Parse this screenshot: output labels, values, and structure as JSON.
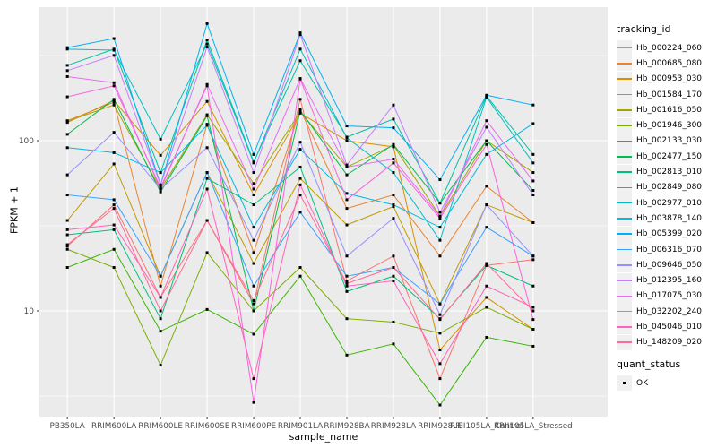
{
  "figure": {
    "background": "#FFFFFF",
    "panel_background": "#EBEBEB",
    "grid_color": "#FFFFFF",
    "tick_color": "#333333",
    "tick_label_color": "#4D4D4D",
    "axis_title_color": "#000000",
    "point_color": "#000000"
  },
  "chart_data": {
    "type": "line",
    "title": "",
    "xlabel": "sample_name",
    "ylabel": "FPKM + 1",
    "y_scale": "log10",
    "y_ticks": [
      100,
      10
    ],
    "y_minor_ticks": [
      316,
      31.6,
      3.16
    ],
    "ylim": [
      2.5,
      600
    ],
    "grid": true,
    "legend_position": "right",
    "point_marker": "black-square",
    "categories": [
      "PB350LA",
      "RRIM600LA",
      "RRIM600LE",
      "RRIM600SE",
      "RRIM600PE",
      "RRIM901LA",
      "RRIM928BA",
      "RRIM928LA",
      "RRIM928LE",
      "RRII105LA_Control",
      "RRII105LA_Stressed"
    ],
    "series": [
      {
        "name": "Hb_000224_060",
        "color": "#F8766D",
        "values": [
          24,
          42,
          12,
          34,
          11,
          175,
          15,
          21,
          4.0,
          18.5,
          20
        ]
      },
      {
        "name": "Hb_000685_080",
        "color": "#EA8331",
        "values": [
          131,
          168,
          14,
          125,
          22,
          152,
          40,
          48,
          21,
          54,
          33
        ]
      },
      {
        "name": "Hb_000953_030",
        "color": "#D89000",
        "values": [
          128,
          172,
          82,
          170,
          48,
          145,
          100,
          92,
          5.9,
          12,
          7.8
        ]
      },
      {
        "name": "Hb_001584_170",
        "color": "#C09B00",
        "values": [
          34,
          73,
          16,
          65,
          19,
          60,
          32,
          41,
          11,
          42,
          33
        ]
      },
      {
        "name": "Hb_001616_050",
        "color": "#A3A500",
        "values": [
          130,
          162,
          52,
          142,
          56,
          148,
          70,
          94,
          36,
          100,
          65
        ]
      },
      {
        "name": "Hb_001946_300",
        "color": "#7CAE00",
        "values": [
          23,
          18,
          4.8,
          22,
          10,
          18,
          9,
          8.6,
          7.4,
          10.5,
          7.8
        ]
      },
      {
        "name": "Hb_002133_030",
        "color": "#39B600",
        "values": [
          18,
          23,
          7.6,
          10.2,
          7.3,
          16,
          5.5,
          6.4,
          2.8,
          7,
          6.2
        ]
      },
      {
        "name": "Hb_002477_150",
        "color": "#00BB4E",
        "values": [
          109,
          175,
          50,
          140,
          10,
          150,
          63,
          95,
          43,
          100,
          51
        ]
      },
      {
        "name": "Hb_002813_010",
        "color": "#00BF7D",
        "values": [
          28,
          30,
          9,
          60,
          42,
          70,
          13,
          16,
          9,
          18.5,
          14
        ]
      },
      {
        "name": "Hb_002849_080",
        "color": "#00C1A3",
        "values": [
          277,
          345,
          65,
          390,
          75,
          295,
          105,
          134,
          43,
          183,
          83
        ]
      },
      {
        "name": "Hb_002977_010",
        "color": "#00BFC4",
        "values": [
          345,
          340,
          102,
          370,
          74,
          345,
          104,
          65,
          26,
          180,
          74
        ]
      },
      {
        "name": "Hb_003878_140",
        "color": "#00BAE0",
        "values": [
          91,
          85,
          65,
          123,
          31,
          89,
          49,
          42,
          31,
          83,
          126
        ]
      },
      {
        "name": "Hb_005399_020",
        "color": "#00B0F6",
        "values": [
          352,
          398,
          55,
          487,
          83,
          430,
          122,
          119,
          59,
          185,
          162
        ]
      },
      {
        "name": "Hb_006316_070",
        "color": "#35A2FF",
        "values": [
          48,
          45,
          16,
          65,
          14,
          38,
          16,
          18,
          11,
          31,
          21
        ]
      },
      {
        "name": "Hb_009646_050",
        "color": "#9590FF",
        "values": [
          63,
          112,
          52,
          91,
          26,
          98,
          21,
          35,
          9.5,
          42,
          21
        ]
      },
      {
        "name": "Hb_012395_160",
        "color": "#C77CFF",
        "values": [
          258,
          317,
          55,
          355,
          65,
          420,
          72,
          162,
          38,
          120,
          48
        ]
      },
      {
        "name": "Hb_017075_030",
        "color": "#E76BF3",
        "values": [
          238,
          219,
          52,
          214,
          52,
          232,
          70,
          78,
          36,
          131,
          58
        ]
      },
      {
        "name": "Hb_032202_240",
        "color": "#FA62DB",
        "values": [
          181,
          210,
          53,
          210,
          2.9,
          230,
          45,
          74,
          35,
          95,
          8.9
        ]
      },
      {
        "name": "Hb_045046_010",
        "color": "#FF62BC",
        "values": [
          30,
          32,
          12,
          52,
          4.0,
          55,
          14,
          15,
          4.9,
          14,
          10.5
        ]
      },
      {
        "name": "Hb_148209_020",
        "color": "#FF6A98",
        "values": [
          24.5,
          40,
          10,
          34,
          11.5,
          48,
          14.5,
          18,
          8.9,
          19,
          10
        ]
      }
    ]
  },
  "legend": {
    "tracking_title": "tracking_id",
    "quant_title": "quant_status",
    "quant_item_label": "OK"
  }
}
